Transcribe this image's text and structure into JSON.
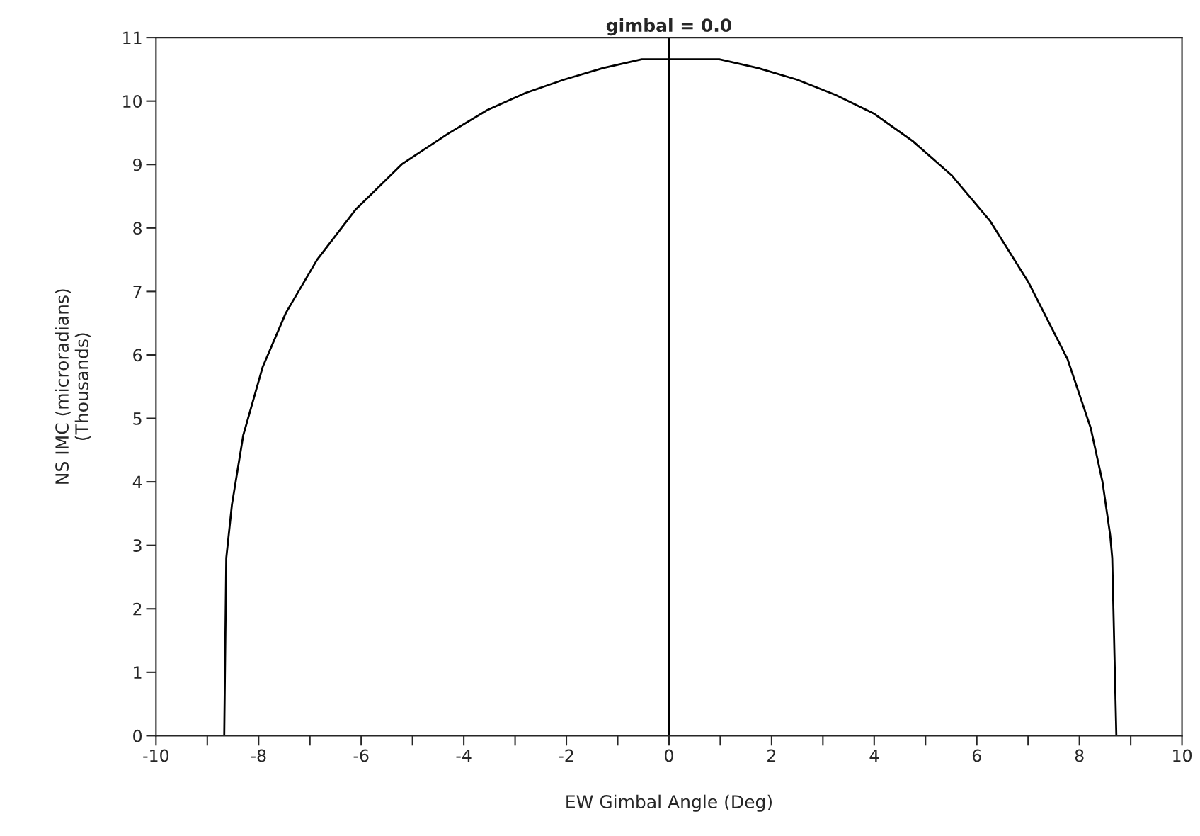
{
  "chart_data": {
    "type": "line",
    "title": "gimbal = 0.0",
    "xlabel": "EW Gimbal Angle (Deg)",
    "ylabel": "NS IMC (microradians)\n(Thousands)",
    "x": [
      -8.67,
      -8.63,
      -8.52,
      -8.3,
      -7.92,
      -7.47,
      -6.86,
      -6.11,
      -5.2,
      -4.3,
      -3.54,
      -2.79,
      -2.04,
      -1.29,
      -0.53,
      0.08,
      0.98,
      1.74,
      2.49,
      3.24,
      4.0,
      4.75,
      5.51,
      6.26,
      7.01,
      7.77,
      8.22,
      8.45,
      8.6,
      8.64,
      8.72
    ],
    "series": [
      {
        "color": "#000000",
        "values": [
          0,
          2.8,
          3.64,
          4.73,
          5.81,
          6.66,
          7.5,
          8.29,
          9.01,
          9.49,
          9.86,
          10.13,
          10.34,
          10.52,
          10.66,
          10.66,
          10.66,
          10.52,
          10.34,
          10.1,
          9.8,
          9.37,
          8.83,
          8.11,
          7.14,
          5.93,
          4.85,
          4.0,
          3.16,
          2.8,
          0
        ]
      }
    ],
    "xlim": [
      -10,
      10
    ],
    "ylim": [
      0,
      11
    ],
    "xticks": [
      -10,
      {
        "value": -9,
        "label": null
      },
      -8,
      {
        "value": -7,
        "label": null
      },
      -6,
      {
        "value": -5,
        "label": null
      },
      -4,
      {
        "value": -3,
        "label": null
      },
      -2,
      {
        "value": -1,
        "label": null
      },
      0,
      {
        "value": 1,
        "label": null
      },
      2,
      {
        "value": 3,
        "label": null
      },
      4,
      {
        "value": 5,
        "label": null
      },
      6,
      {
        "value": 7,
        "label": null
      },
      8,
      {
        "value": 9,
        "label": null
      },
      10
    ],
    "yticks": [
      0,
      1,
      2,
      3,
      4,
      5,
      6,
      7,
      8,
      9,
      10,
      11
    ],
    "ref_lines": [
      {
        "axis": "x",
        "value": 0,
        "color": "#000000"
      }
    ],
    "grid": false,
    "legend": false,
    "marker": "none",
    "line_style": "solid"
  }
}
